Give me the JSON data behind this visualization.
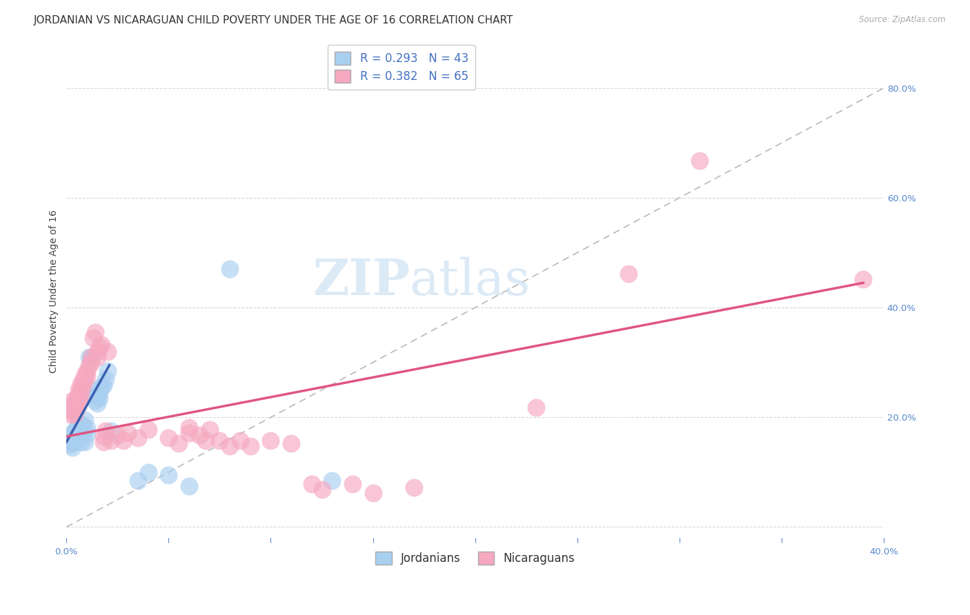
{
  "title": "JORDANIAN VS NICARAGUAN CHILD POVERTY UNDER THE AGE OF 16 CORRELATION CHART",
  "source": "Source: ZipAtlas.com",
  "ylabel": "Child Poverty Under the Age of 16",
  "xlim": [
    0.0,
    0.4
  ],
  "ylim": [
    -0.02,
    0.88
  ],
  "right_yticks": [
    0.0,
    0.2,
    0.4,
    0.6,
    0.8
  ],
  "right_yticklabels": [
    "",
    "20.0%",
    "40.0%",
    "60.0%",
    "80.0%"
  ],
  "xticks": [
    0.0,
    0.05,
    0.1,
    0.15,
    0.2,
    0.25,
    0.3,
    0.35,
    0.4
  ],
  "xticklabels": [
    "0.0%",
    "",
    "",
    "",
    "",
    "",
    "",
    "",
    "40.0%"
  ],
  "watermark_zip": "ZIP",
  "watermark_atlas": "atlas",
  "jordan_color": "#a8cef0",
  "nicaragua_color": "#f5a8c0",
  "jordan_trend_color": "#3a5fb0",
  "nicaragua_trend_color": "#e05580",
  "diagonal_color": "#b8b8b8",
  "background_color": "#ffffff",
  "grid_color": "#d8d8d8",
  "jordan_scatter": [
    [
      0.001,
      0.16
    ],
    [
      0.002,
      0.155
    ],
    [
      0.002,
      0.15
    ],
    [
      0.003,
      0.17
    ],
    [
      0.003,
      0.155
    ],
    [
      0.003,
      0.145
    ],
    [
      0.004,
      0.175
    ],
    [
      0.004,
      0.165
    ],
    [
      0.004,
      0.155
    ],
    [
      0.005,
      0.18
    ],
    [
      0.005,
      0.17
    ],
    [
      0.005,
      0.16
    ],
    [
      0.006,
      0.19
    ],
    [
      0.006,
      0.175
    ],
    [
      0.006,
      0.168
    ],
    [
      0.007,
      0.155
    ],
    [
      0.007,
      0.175
    ],
    [
      0.008,
      0.185
    ],
    [
      0.008,
      0.168
    ],
    [
      0.009,
      0.155
    ],
    [
      0.009,
      0.195
    ],
    [
      0.01,
      0.17
    ],
    [
      0.01,
      0.18
    ],
    [
      0.011,
      0.31
    ],
    [
      0.012,
      0.31
    ],
    [
      0.013,
      0.25
    ],
    [
      0.013,
      0.24
    ],
    [
      0.014,
      0.23
    ],
    [
      0.015,
      0.24
    ],
    [
      0.015,
      0.225
    ],
    [
      0.016,
      0.245
    ],
    [
      0.016,
      0.235
    ],
    [
      0.017,
      0.255
    ],
    [
      0.018,
      0.258
    ],
    [
      0.019,
      0.27
    ],
    [
      0.02,
      0.285
    ],
    [
      0.022,
      0.175
    ],
    [
      0.035,
      0.085
    ],
    [
      0.04,
      0.1
    ],
    [
      0.05,
      0.095
    ],
    [
      0.06,
      0.075
    ],
    [
      0.08,
      0.47
    ],
    [
      0.13,
      0.085
    ]
  ],
  "nicaragua_scatter": [
    [
      0.001,
      0.22
    ],
    [
      0.002,
      0.215
    ],
    [
      0.002,
      0.205
    ],
    [
      0.003,
      0.23
    ],
    [
      0.003,
      0.22
    ],
    [
      0.003,
      0.21
    ],
    [
      0.004,
      0.225
    ],
    [
      0.004,
      0.215
    ],
    [
      0.004,
      0.205
    ],
    [
      0.005,
      0.235
    ],
    [
      0.005,
      0.225
    ],
    [
      0.005,
      0.215
    ],
    [
      0.006,
      0.25
    ],
    [
      0.006,
      0.24
    ],
    [
      0.006,
      0.23
    ],
    [
      0.007,
      0.26
    ],
    [
      0.007,
      0.248
    ],
    [
      0.007,
      0.238
    ],
    [
      0.008,
      0.268
    ],
    [
      0.008,
      0.258
    ],
    [
      0.009,
      0.278
    ],
    [
      0.009,
      0.268
    ],
    [
      0.01,
      0.285
    ],
    [
      0.01,
      0.275
    ],
    [
      0.011,
      0.295
    ],
    [
      0.012,
      0.31
    ],
    [
      0.012,
      0.3
    ],
    [
      0.013,
      0.345
    ],
    [
      0.014,
      0.355
    ],
    [
      0.015,
      0.32
    ],
    [
      0.015,
      0.31
    ],
    [
      0.016,
      0.328
    ],
    [
      0.017,
      0.332
    ],
    [
      0.018,
      0.165
    ],
    [
      0.018,
      0.155
    ],
    [
      0.019,
      0.175
    ],
    [
      0.02,
      0.32
    ],
    [
      0.022,
      0.158
    ],
    [
      0.025,
      0.168
    ],
    [
      0.028,
      0.158
    ],
    [
      0.03,
      0.172
    ],
    [
      0.035,
      0.162
    ],
    [
      0.04,
      0.178
    ],
    [
      0.05,
      0.162
    ],
    [
      0.055,
      0.152
    ],
    [
      0.06,
      0.182
    ],
    [
      0.06,
      0.172
    ],
    [
      0.065,
      0.168
    ],
    [
      0.068,
      0.158
    ],
    [
      0.07,
      0.178
    ],
    [
      0.075,
      0.158
    ],
    [
      0.08,
      0.148
    ],
    [
      0.085,
      0.158
    ],
    [
      0.09,
      0.148
    ],
    [
      0.1,
      0.158
    ],
    [
      0.11,
      0.152
    ],
    [
      0.12,
      0.078
    ],
    [
      0.125,
      0.068
    ],
    [
      0.14,
      0.078
    ],
    [
      0.15,
      0.062
    ],
    [
      0.17,
      0.072
    ],
    [
      0.23,
      0.218
    ],
    [
      0.275,
      0.462
    ],
    [
      0.31,
      0.668
    ],
    [
      0.39,
      0.452
    ]
  ],
  "jordan_trendline_x": [
    0.0,
    0.021
  ],
  "jordan_trendline_y": [
    0.155,
    0.295
  ],
  "nicaragua_trendline_x": [
    0.0,
    0.39
  ],
  "nicaragua_trendline_y": [
    0.165,
    0.445
  ],
  "diagonal_line": [
    [
      0.0,
      0.0
    ],
    [
      0.4,
      0.8
    ]
  ],
  "title_fontsize": 11,
  "axis_label_fontsize": 10,
  "tick_fontsize": 9.5,
  "legend_fontsize": 12
}
